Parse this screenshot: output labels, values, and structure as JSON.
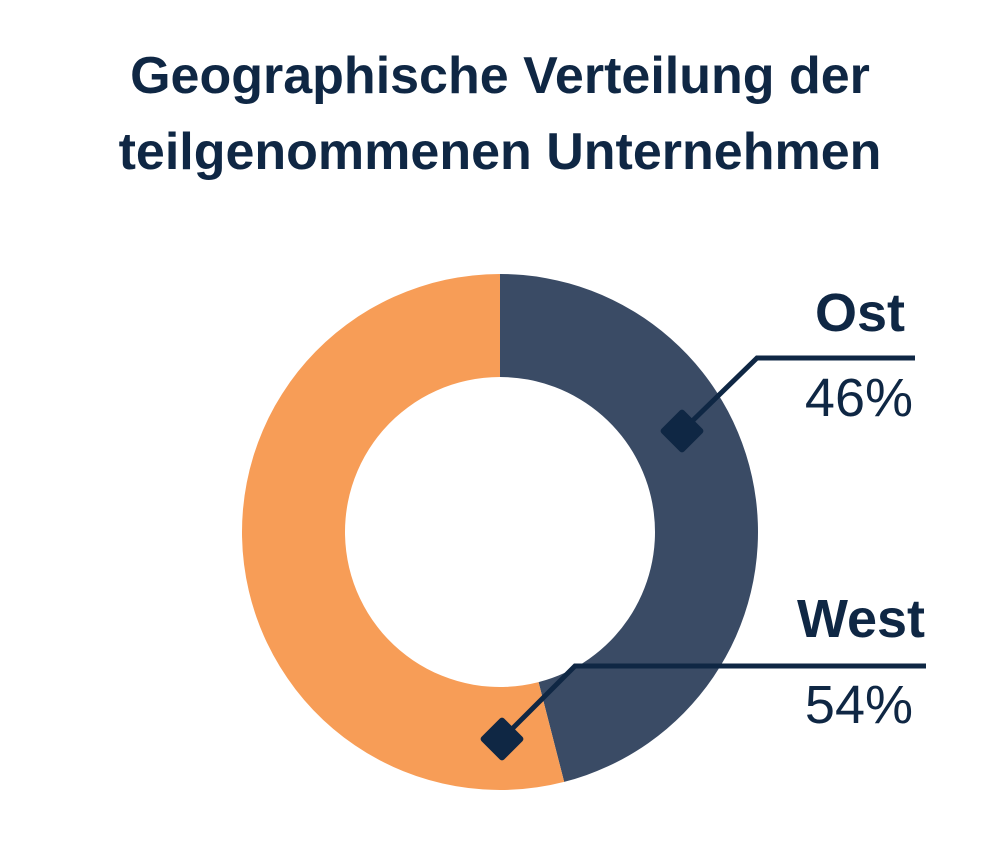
{
  "title_line1": "Geographische Verteilung der",
  "title_line2": "teilgenommenen Unternehmen",
  "colors": {
    "text": "#0f2744",
    "ost": "#3a4b65",
    "west": "#f79d57",
    "background": "#ffffff"
  },
  "chart_data": {
    "type": "pie",
    "variant": "donut",
    "title": "Geographische Verteilung der teilgenommenen Unternehmen",
    "categories": [
      "Ost",
      "West"
    ],
    "values": [
      46,
      54
    ],
    "labels": [
      "46%",
      "54%"
    ],
    "legend": "none"
  }
}
